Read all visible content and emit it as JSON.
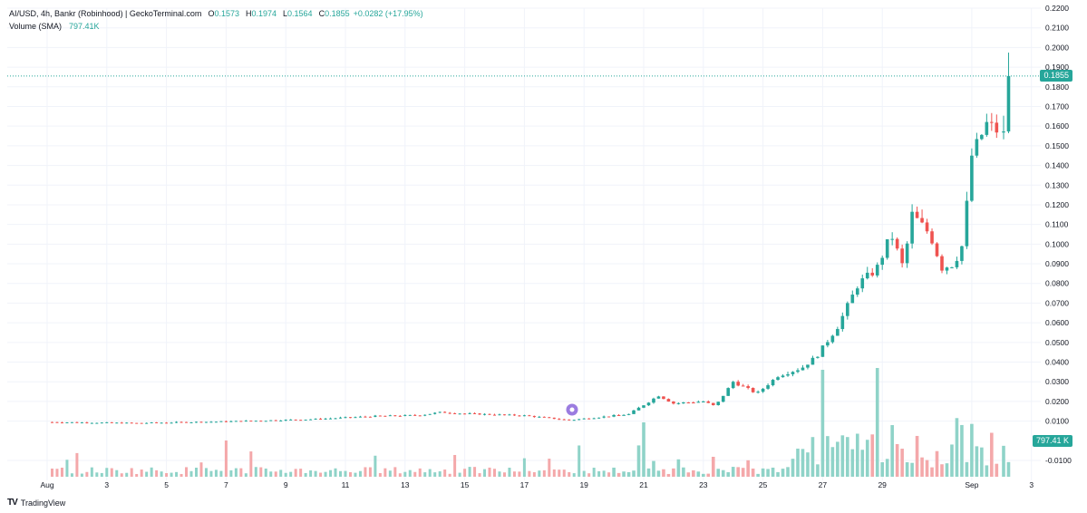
{
  "legend": {
    "symbol": "AI/USD, 4h, Bankr (Robinhood) | GeckoTerminal.com",
    "open_label": "O",
    "open": "0.1573",
    "high_label": "H",
    "high": "0.1974",
    "low_label": "L",
    "low": "0.1564",
    "close_label": "C",
    "close": "0.1855",
    "change": "+0.0282 (+17.95%)",
    "volume_label": "Volume (SMA)",
    "volume_value": "797.41K"
  },
  "brand": {
    "logo": "TV",
    "name": "TradingView"
  },
  "tags": {
    "price": "0.1855",
    "volume": "797.41 K"
  },
  "colors": {
    "up": "#26a69a",
    "down": "#ef5350",
    "volume_up": "#8fd3c8",
    "volume_down": "#f4a8aa",
    "grid": "#f0f3fa"
  },
  "chart_data": {
    "type": "candlestick",
    "title": "AI/USD, 4h, Bankr (Robinhood) | GeckoTerminal.com",
    "y_axis": {
      "position": "right",
      "min": -0.01,
      "max": 0.22,
      "step": 0.01,
      "tick_labels": [
        "0.2200",
        "0.2100",
        "0.2000",
        "0.1900",
        "0.1800",
        "0.1700",
        "0.1600",
        "0.1500",
        "0.1400",
        "0.1300",
        "0.1200",
        "0.1100",
        "0.1000",
        "0.0900",
        "0.0800",
        "0.0700",
        "0.0600",
        "0.0500",
        "0.0400",
        "0.0300",
        "0.0200",
        "0.0100",
        "-0.0100"
      ]
    },
    "x_axis": {
      "tick_labels": [
        "Aug",
        "3",
        "5",
        "7",
        "9",
        "11",
        "13",
        "15",
        "17",
        "19",
        "21",
        "23",
        "25",
        "27",
        "29",
        "Sep",
        "3"
      ],
      "tick_days": [
        1,
        3,
        5,
        7,
        9,
        11,
        13,
        15,
        17,
        19,
        21,
        23,
        25,
        27,
        29,
        32,
        34
      ]
    },
    "keypoints": [
      {
        "day": 1.0,
        "close": 0.0095
      },
      {
        "day": 4.0,
        "close": 0.009
      },
      {
        "day": 7.0,
        "close": 0.0098
      },
      {
        "day": 10.0,
        "close": 0.011
      },
      {
        "day": 12.0,
        "close": 0.0125
      },
      {
        "day": 13.5,
        "close": 0.013
      },
      {
        "day": 14.2,
        "close": 0.0145
      },
      {
        "day": 15.0,
        "close": 0.0138
      },
      {
        "day": 17.0,
        "close": 0.0128
      },
      {
        "day": 18.5,
        "close": 0.0105
      },
      {
        "day": 20.5,
        "close": 0.0135
      },
      {
        "day": 21.5,
        "close": 0.023
      },
      {
        "day": 22.0,
        "close": 0.019
      },
      {
        "day": 23.0,
        "close": 0.02
      },
      {
        "day": 23.4,
        "close": 0.0175
      },
      {
        "day": 24.0,
        "close": 0.03
      },
      {
        "day": 24.8,
        "close": 0.024
      },
      {
        "day": 25.5,
        "close": 0.033
      },
      {
        "day": 26.3,
        "close": 0.037
      },
      {
        "day": 26.8,
        "close": 0.043
      },
      {
        "day": 27.5,
        "close": 0.058
      },
      {
        "day": 28.2,
        "close": 0.08
      },
      {
        "day": 28.8,
        "close": 0.087
      },
      {
        "day": 29.3,
        "close": 0.105
      },
      {
        "day": 29.7,
        "close": 0.088
      },
      {
        "day": 30.0,
        "close": 0.115
      },
      {
        "day": 30.6,
        "close": 0.105
      },
      {
        "day": 31.0,
        "close": 0.088
      },
      {
        "day": 31.4,
        "close": 0.09
      },
      {
        "day": 31.7,
        "close": 0.1
      },
      {
        "day": 32.0,
        "close": 0.145
      },
      {
        "day": 32.5,
        "close": 0.161
      },
      {
        "day": 32.9,
        "close": 0.1573
      },
      {
        "day": 33.1,
        "close": 0.1855
      }
    ],
    "last_candle": {
      "open": 0.1573,
      "high": 0.1974,
      "low": 0.1564,
      "close": 0.1855
    },
    "volume_sma": 797410
  }
}
